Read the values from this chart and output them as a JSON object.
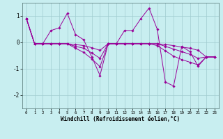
{
  "xlabel": "Windchill (Refroidissement éolien,°C)",
  "x_values": [
    0,
    1,
    2,
    3,
    4,
    5,
    6,
    7,
    8,
    9,
    10,
    11,
    12,
    13,
    14,
    15,
    16,
    17,
    18,
    19,
    20,
    21,
    22,
    23
  ],
  "lines": [
    [
      0.9,
      -0.05,
      -0.05,
      0.45,
      0.55,
      1.1,
      0.3,
      0.1,
      -0.55,
      -1.25,
      -0.05,
      -0.05,
      0.45,
      0.45,
      0.9,
      1.3,
      0.5,
      -1.5,
      -1.65,
      -0.15,
      -0.35,
      -0.9,
      -0.55,
      -0.55
    ],
    [
      0.9,
      -0.05,
      -0.05,
      -0.05,
      -0.05,
      -0.05,
      -0.08,
      -0.12,
      -0.2,
      -0.3,
      -0.05,
      -0.05,
      -0.05,
      -0.05,
      -0.05,
      -0.05,
      -0.05,
      -0.08,
      -0.12,
      -0.18,
      -0.22,
      -0.3,
      -0.55,
      -0.55
    ],
    [
      0.9,
      -0.05,
      -0.05,
      -0.05,
      -0.05,
      -0.05,
      -0.15,
      -0.22,
      -0.4,
      -0.6,
      -0.05,
      -0.05,
      -0.05,
      -0.05,
      -0.05,
      -0.05,
      -0.05,
      -0.15,
      -0.25,
      -0.35,
      -0.45,
      -0.6,
      -0.55,
      -0.55
    ],
    [
      0.9,
      -0.05,
      -0.05,
      -0.05,
      -0.05,
      -0.05,
      -0.22,
      -0.38,
      -0.62,
      -0.92,
      -0.05,
      -0.05,
      -0.05,
      -0.05,
      -0.05,
      -0.05,
      -0.12,
      -0.32,
      -0.52,
      -0.65,
      -0.75,
      -0.85,
      -0.55,
      -0.55
    ]
  ],
  "line_color": "#990099",
  "marker": "D",
  "marker_size": 1.8,
  "bg_color": "#c8eef0",
  "grid_color": "#a0ccd0",
  "ylim": [
    -2.5,
    1.5
  ],
  "yticks": [
    -2,
    -1,
    0,
    1
  ],
  "figsize": [
    3.2,
    2.0
  ],
  "dpi": 100
}
